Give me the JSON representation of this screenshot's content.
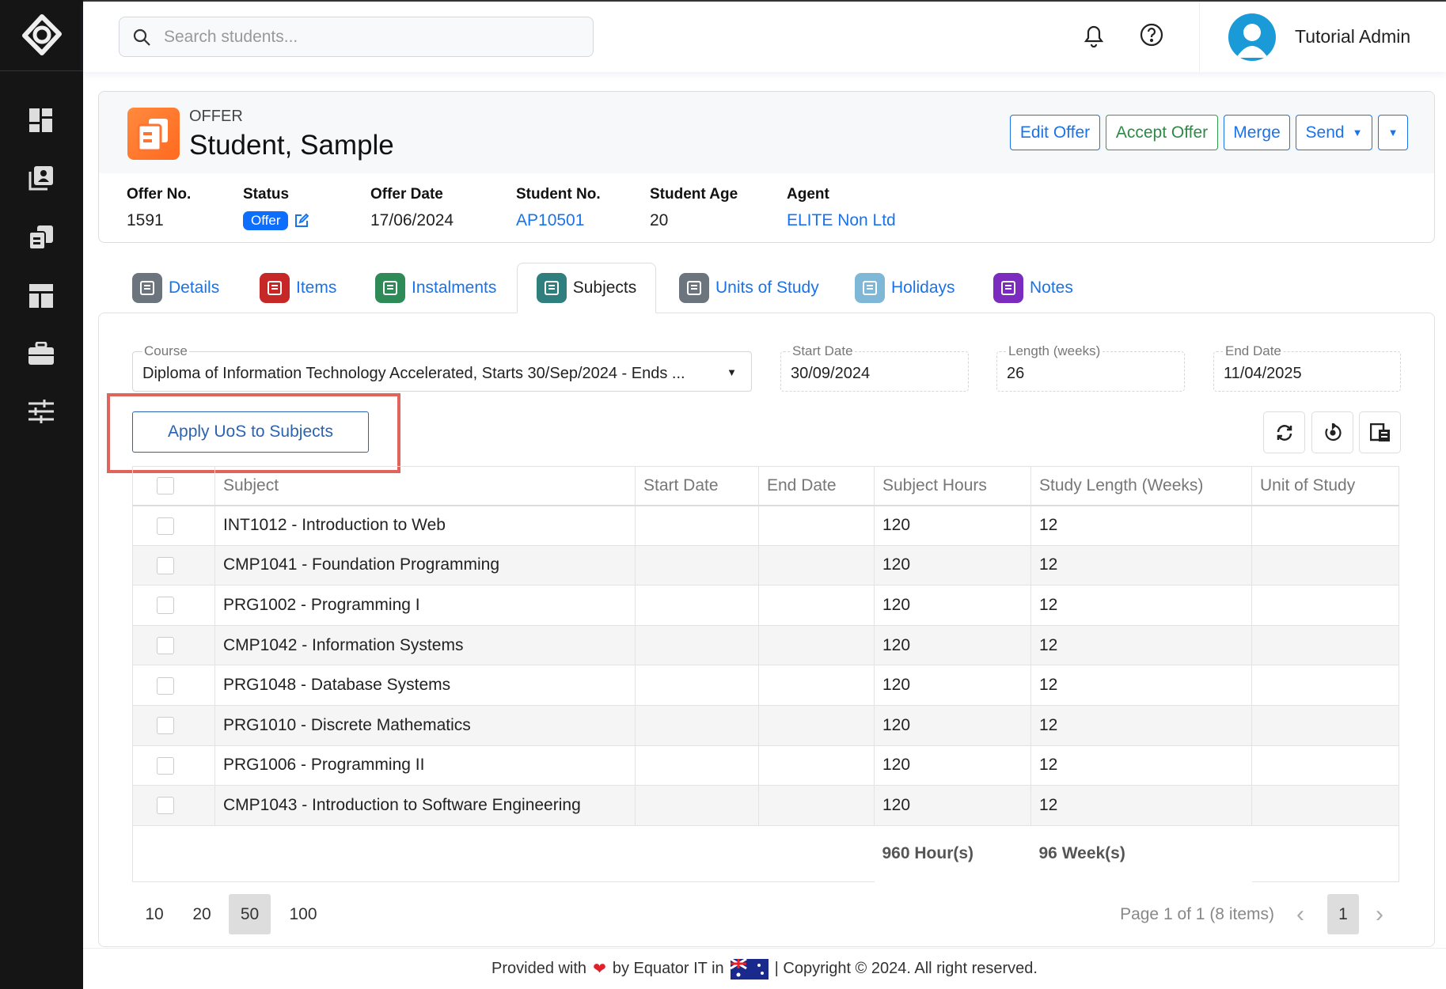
{
  "search": {
    "placeholder": "Search students..."
  },
  "user": {
    "name": "Tutorial Admin"
  },
  "sidebar": {
    "items": [
      "dashboard-icon",
      "contacts-icon",
      "offers-icon",
      "layout-icon",
      "briefcase-icon",
      "sliders-icon"
    ]
  },
  "header": {
    "kicker": "OFFER",
    "title": "Student, Sample",
    "buttons": {
      "edit": "Edit Offer",
      "accept": "Accept Offer",
      "merge": "Merge",
      "send": "Send"
    },
    "meta": {
      "offer_no_label": "Offer No.",
      "offer_no": "1591",
      "status_label": "Status",
      "status": "Offer",
      "offer_date_label": "Offer Date",
      "offer_date": "17/06/2024",
      "student_no_label": "Student No.",
      "student_no": "AP10501",
      "student_age_label": "Student Age",
      "student_age": "20",
      "agent_label": "Agent",
      "agent": "ELITE Non Ltd"
    }
  },
  "tabs": [
    {
      "label": "Details",
      "color": "#6c757d"
    },
    {
      "label": "Items",
      "color": "#c62828"
    },
    {
      "label": "Instalments",
      "color": "#2e8b57"
    },
    {
      "label": "Subjects",
      "color": "#2f7f7f"
    },
    {
      "label": "Units of Study",
      "color": "#6c757d"
    },
    {
      "label": "Holidays",
      "color": "#7fb8d6"
    },
    {
      "label": "Notes",
      "color": "#7b2cbf"
    }
  ],
  "form": {
    "course_label": "Course",
    "course": "Diploma of Information Technology Accelerated, Starts 30/Sep/2024 - Ends ...",
    "start_label": "Start Date",
    "start": "30/09/2024",
    "length_label": "Length (weeks)",
    "length": "26",
    "end_label": "End Date",
    "end": "11/04/2025"
  },
  "apply_button": "Apply UoS to Subjects",
  "table": {
    "headers": [
      "Subject",
      "Start Date",
      "End Date",
      "Subject Hours",
      "Study Length (Weeks)",
      "Unit of Study"
    ],
    "rows": [
      {
        "subject": "INT1012 - Introduction to Web",
        "start": "",
        "end": "",
        "hours": "120",
        "weeks": "12",
        "uos": ""
      },
      {
        "subject": "CMP1041 - Foundation Programming",
        "start": "",
        "end": "",
        "hours": "120",
        "weeks": "12",
        "uos": ""
      },
      {
        "subject": "PRG1002 - Programming I",
        "start": "",
        "end": "",
        "hours": "120",
        "weeks": "12",
        "uos": ""
      },
      {
        "subject": "CMP1042 - Information Systems",
        "start": "",
        "end": "",
        "hours": "120",
        "weeks": "12",
        "uos": ""
      },
      {
        "subject": "PRG1048 - Database Systems",
        "start": "",
        "end": "",
        "hours": "120",
        "weeks": "12",
        "uos": ""
      },
      {
        "subject": "PRG1010 - Discrete Mathematics",
        "start": "",
        "end": "",
        "hours": "120",
        "weeks": "12",
        "uos": ""
      },
      {
        "subject": "PRG1006 - Programming II",
        "start": "",
        "end": "",
        "hours": "120",
        "weeks": "12",
        "uos": ""
      },
      {
        "subject": "CMP1043 - Introduction to Software Engineering",
        "start": "",
        "end": "",
        "hours": "120",
        "weeks": "12",
        "uos": ""
      }
    ],
    "total_hours": "960 Hour(s)",
    "total_weeks": "96 Week(s)"
  },
  "pager": {
    "sizes": [
      "10",
      "20",
      "50",
      "100"
    ],
    "selected": "50",
    "info": "Page 1 of 1 (8 items)",
    "page": "1"
  },
  "footer": {
    "pre": "Provided with",
    "mid": "by Equator IT in",
    "post": "| Copyright © 2024. All right reserved."
  }
}
